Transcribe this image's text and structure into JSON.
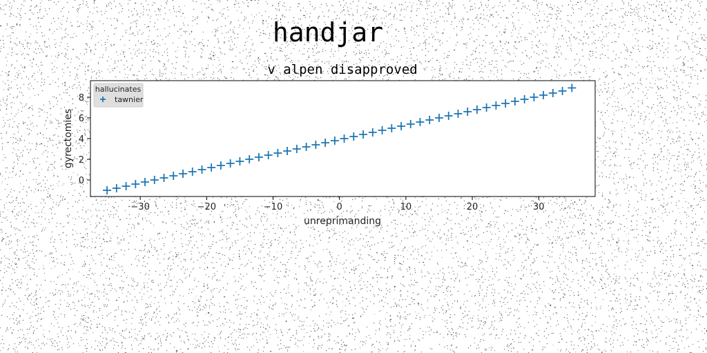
{
  "chart_data": {
    "type": "scatter",
    "title": "handjar",
    "subtitle": "v alpen disapproved",
    "xlabel": "unreprimanding",
    "ylabel": "gyrectomies",
    "xlim": [
      -37.5,
      38.5
    ],
    "ylim": [
      -1.6,
      9.6
    ],
    "xticks": [
      -30,
      -20,
      -10,
      0,
      10,
      20,
      30
    ],
    "yticks": [
      0,
      2,
      4,
      6,
      8
    ],
    "grid": false,
    "legend": {
      "title": "hallucinates",
      "position": "top-left"
    },
    "marker": "plus",
    "series": [
      {
        "name": "tawnier",
        "color": "#1f77b4",
        "x": [
          -35,
          -33.57,
          -32.14,
          -30.71,
          -29.29,
          -27.86,
          -26.43,
          -25,
          -23.57,
          -22.14,
          -20.71,
          -19.29,
          -17.86,
          -16.43,
          -15,
          -13.57,
          -12.14,
          -10.71,
          -9.29,
          -7.86,
          -6.43,
          -5,
          -3.57,
          -2.14,
          -0.71,
          0.71,
          2.14,
          3.57,
          5,
          6.43,
          7.86,
          9.29,
          10.71,
          12.14,
          13.57,
          15,
          16.43,
          17.86,
          19.29,
          20.71,
          22.14,
          23.57,
          25,
          26.43,
          27.86,
          29.29,
          30.71,
          32.14,
          33.57,
          35
        ],
        "y": [
          -1.0,
          -0.8,
          -0.6,
          -0.4,
          -0.2,
          0.0,
          0.2,
          0.4,
          0.6,
          0.8,
          1.0,
          1.2,
          1.4,
          1.6,
          1.8,
          2.0,
          2.2,
          2.4,
          2.6,
          2.8,
          3.0,
          3.2,
          3.4,
          3.6,
          3.8,
          4.0,
          4.2,
          4.4,
          4.6,
          4.8,
          5.0,
          5.2,
          5.4,
          5.6,
          5.8,
          6.0,
          6.2,
          6.4,
          6.6,
          6.8,
          7.0,
          7.2,
          7.4,
          7.6,
          7.8,
          8.0,
          8.2,
          8.4,
          8.6,
          8.9
        ]
      }
    ]
  }
}
